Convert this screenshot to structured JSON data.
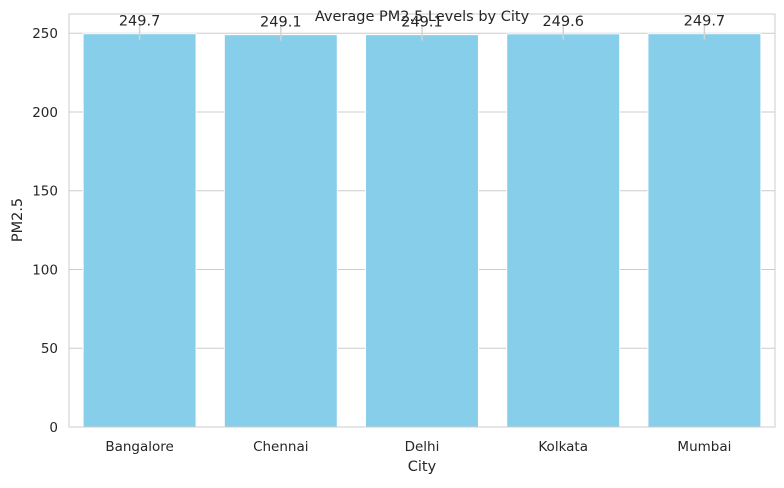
{
  "chart_data": {
    "type": "bar",
    "title": "Average PM2.5 Levels by City",
    "xlabel": "City",
    "ylabel": "PM2.5",
    "categories": [
      "Bangalore",
      "Chennai",
      "Delhi",
      "Kolkata",
      "Mumbai"
    ],
    "values": [
      249.7,
      249.1,
      249.1,
      249.6,
      249.7
    ],
    "value_labels": [
      "249.7",
      "249.1",
      "249.1",
      "249.6",
      "249.7"
    ],
    "ylim": [
      0,
      262.2
    ],
    "yticks": [
      0,
      50,
      100,
      150,
      200,
      250
    ],
    "grid": "horizontal",
    "bar_color": "#87CEEB",
    "error_bar_color": "#d3d3d3"
  }
}
